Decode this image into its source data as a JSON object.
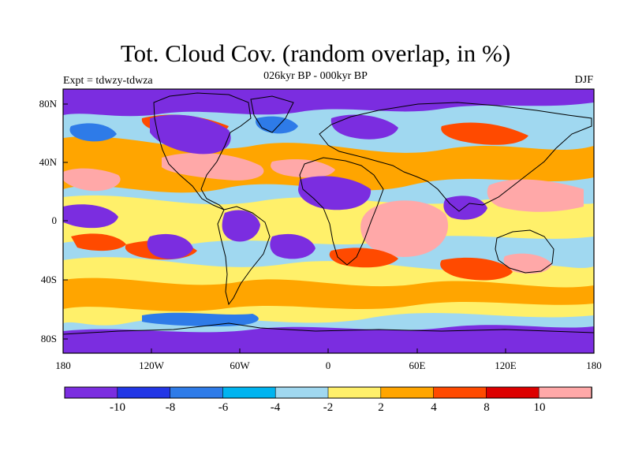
{
  "title": "Tot. Cloud Cov. (random overlap, in %)",
  "subtitle": "026kyr BP - 000kyr BP",
  "experiment": "Expt = tdwzy-tdwza",
  "season": "DJF",
  "lat_labels": [
    "80N",
    "40N",
    "0",
    "40S",
    "80S"
  ],
  "lon_labels": [
    "180",
    "120W",
    "60W",
    "0",
    "60E",
    "120E",
    "180"
  ],
  "colorbar": {
    "labels": [
      "-10",
      "-8",
      "-6",
      "-4",
      "-2",
      "2",
      "4",
      "8",
      "10"
    ],
    "colors": [
      "#7b2de0",
      "#2236e6",
      "#2e7be8",
      "#00b4f0",
      "#a0d8f0",
      "#fff06a",
      "#ffa500",
      "#ff4a00",
      "#dd0000",
      "#ffa8a8"
    ]
  }
}
